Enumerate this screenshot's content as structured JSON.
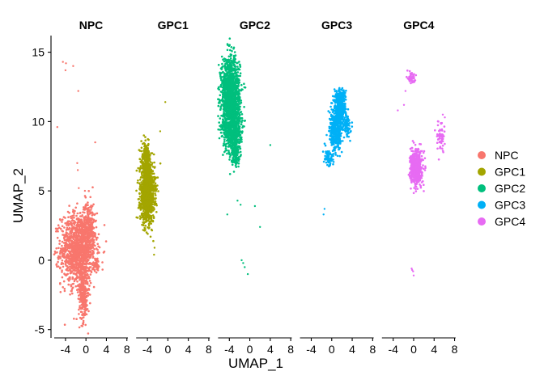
{
  "chart_data": {
    "type": "scatter",
    "subtype": "faceted-umap",
    "xlabel": "UMAP_1",
    "ylabel": "UMAP_2",
    "xlim": [
      -6.2,
      8.2
    ],
    "ylim": [
      -5.6,
      16.2
    ],
    "x_ticks": [
      -4,
      0,
      4,
      8
    ],
    "x_tick_labels": [
      "-4",
      "0",
      "4",
      "8"
    ],
    "y_ticks": [
      -5,
      0,
      5,
      10,
      15
    ],
    "y_tick_labels": [
      "-5",
      "0",
      "5",
      "10",
      "15"
    ],
    "grid": false,
    "legend_position": "right",
    "panels": [
      {
        "name": "NPC",
        "color": "#F8766D",
        "clusters": [
          {
            "cx": -1.5,
            "cy": 0.8,
            "sx": 1.7,
            "sy": 1.3,
            "n": 1300
          },
          {
            "cx": -0.5,
            "cy": -2.4,
            "sx": 0.45,
            "sy": 1.0,
            "n": 280
          },
          {
            "cx": 0.5,
            "cy": 2.4,
            "sx": 0.6,
            "sy": 0.9,
            "n": 220
          },
          {
            "cx": 2.0,
            "cy": -0.3,
            "sx": 0.25,
            "sy": 0.25,
            "n": 40
          }
        ],
        "outliers": [
          [
            -3.9,
            14.2
          ],
          [
            -4.5,
            14.3
          ],
          [
            -4.0,
            13.7
          ],
          [
            -1.5,
            12.2
          ],
          [
            -2.5,
            14.0
          ],
          [
            -5.6,
            9.6
          ],
          [
            1.8,
            8.5
          ],
          [
            -1.7,
            7.0
          ],
          [
            -1.6,
            6.5
          ],
          [
            -1.4,
            5.2
          ],
          [
            -0.2,
            5.0
          ]
        ]
      },
      {
        "name": "GPC1",
        "color": "#A3A500",
        "clusters": [
          {
            "cx": -4.0,
            "cy": 4.8,
            "sx": 0.7,
            "sy": 1.0,
            "n": 1200
          },
          {
            "cx": -4.3,
            "cy": 7.2,
            "sx": 0.45,
            "sy": 0.6,
            "n": 220
          }
        ],
        "outliers": [
          [
            -0.5,
            11.4
          ],
          [
            -1.5,
            9.3
          ],
          [
            -2.6,
            0.9
          ],
          [
            -2.7,
            0.4
          ]
        ]
      },
      {
        "name": "GPC2",
        "color": "#00BF7D",
        "clusters": [
          {
            "cx": -3.8,
            "cy": 12.0,
            "sx": 0.9,
            "sy": 1.3,
            "n": 1400
          },
          {
            "cx": -3.3,
            "cy": 9.4,
            "sx": 0.8,
            "sy": 0.9,
            "n": 600
          },
          {
            "cx": -2.8,
            "cy": 7.6,
            "sx": 0.4,
            "sy": 0.4,
            "n": 120
          }
        ],
        "outliers": [
          [
            4.0,
            8.3
          ],
          [
            -2.4,
            4.3
          ],
          [
            -1.8,
            4.0
          ],
          [
            1.0,
            3.9
          ],
          [
            2.0,
            2.4
          ],
          [
            -4.4,
            3.3
          ],
          [
            -1.6,
            0.0
          ],
          [
            -1.3,
            -0.2
          ],
          [
            -1.0,
            -0.5
          ],
          [
            -0.4,
            -1.0
          ]
        ]
      },
      {
        "name": "GPC3",
        "color": "#00B0F6",
        "clusters": [
          {
            "cx": 1.6,
            "cy": 11.0,
            "sx": 0.55,
            "sy": 0.7,
            "n": 450
          },
          {
            "cx": 0.8,
            "cy": 9.3,
            "sx": 0.6,
            "sy": 0.8,
            "n": 350
          },
          {
            "cx": 3.0,
            "cy": 9.7,
            "sx": 0.3,
            "sy": 0.45,
            "n": 90
          },
          {
            "cx": -0.8,
            "cy": 7.4,
            "sx": 0.5,
            "sy": 0.3,
            "n": 60
          }
        ],
        "outliers": [
          [
            -1.4,
            3.7
          ],
          [
            -1.6,
            3.3
          ]
        ]
      },
      {
        "name": "GPC4",
        "color": "#E76BF3",
        "clusters": [
          {
            "cx": 0.5,
            "cy": 6.7,
            "sx": 0.55,
            "sy": 0.6,
            "n": 600
          },
          {
            "cx": -0.4,
            "cy": 13.2,
            "sx": 0.3,
            "sy": 0.25,
            "n": 60
          },
          {
            "cx": 5.3,
            "cy": 8.9,
            "sx": 0.4,
            "sy": 0.5,
            "n": 55
          }
        ],
        "outliers": [
          [
            -3.1,
            10.8
          ],
          [
            -1.6,
            12.2
          ],
          [
            -1.9,
            11.2
          ],
          [
            5.7,
            10.5
          ],
          [
            6.1,
            10.3
          ],
          [
            -0.3,
            -0.7
          ],
          [
            -0.1,
            -0.8
          ],
          [
            0.0,
            -1.1
          ],
          [
            -0.4,
            -0.6
          ]
        ]
      }
    ]
  }
}
